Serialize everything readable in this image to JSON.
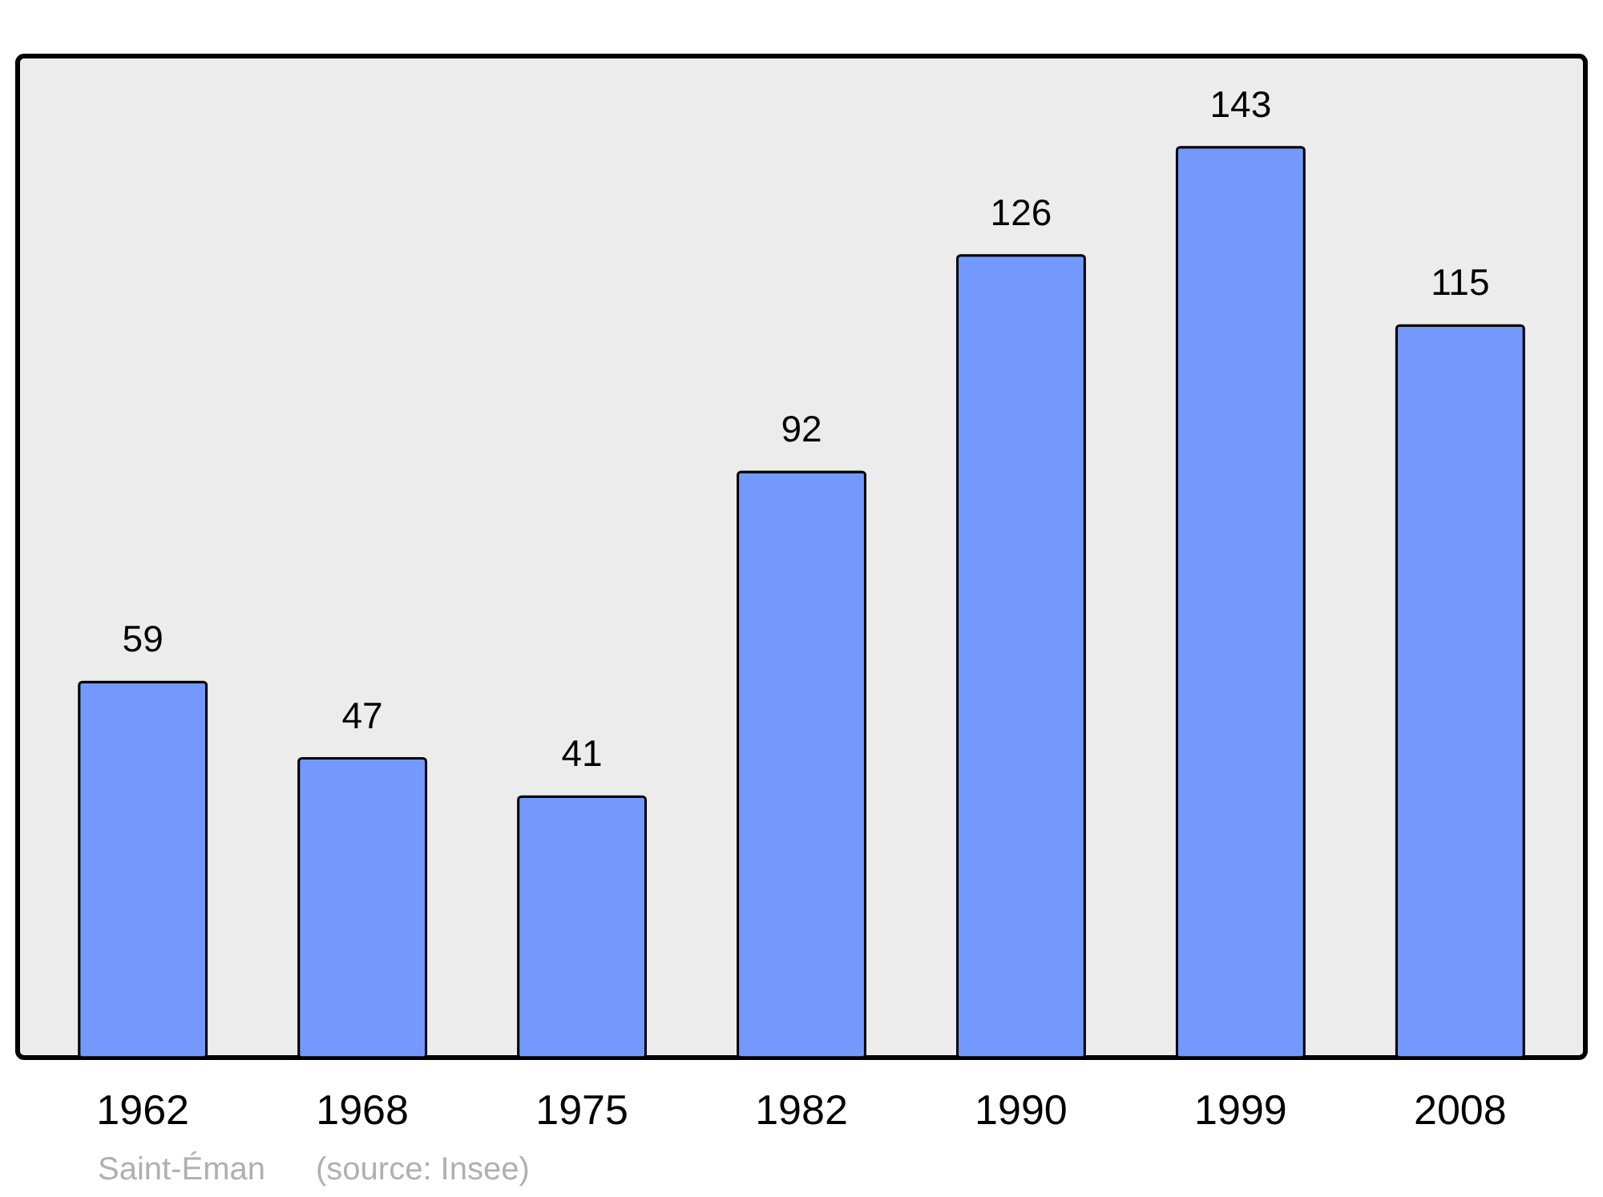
{
  "chart_data": {
    "type": "bar",
    "categories": [
      "1962",
      "1968",
      "1975",
      "1982",
      "1990",
      "1999",
      "2008"
    ],
    "values": [
      59,
      47,
      41,
      92,
      126,
      143,
      115
    ],
    "color": "#7399ff",
    "data_labels": true,
    "grid": false,
    "annotations": [
      "Saint-Éman",
      "(source: Insee)"
    ]
  }
}
